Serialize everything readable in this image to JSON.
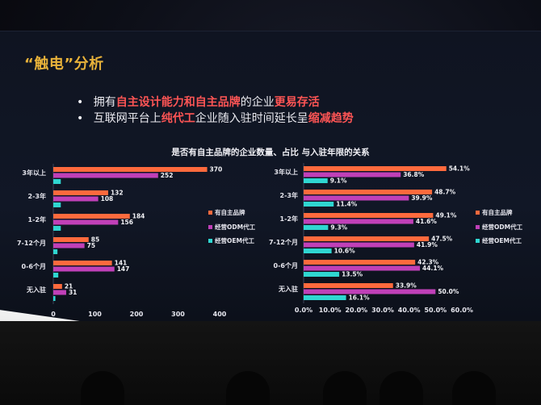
{
  "slide": {
    "title": "“触电”分析",
    "bullets": [
      [
        {
          "text": "拥有",
          "highlight": false
        },
        {
          "text": "自主设计能力和自主品牌",
          "highlight": true
        },
        {
          "text": "的企业",
          "highlight": false
        },
        {
          "text": "更易存活",
          "highlight": true
        }
      ],
      [
        {
          "text": "互联网平台上",
          "highlight": false
        },
        {
          "text": "纯代工",
          "highlight": true
        },
        {
          "text": "企业随入驻时间延长呈",
          "highlight": false
        },
        {
          "text": "缩减趋势",
          "highlight": true
        }
      ]
    ],
    "chart_title": "是否有自主品牌的企业数量、占比 与入驻年限的关系"
  },
  "colors": {
    "brand": "#ff6a3d",
    "odm": "#c040b8",
    "oem": "#2fd6d1",
    "title": "#e8b23a",
    "highlight": "#ff5555"
  },
  "chart_data": [
    {
      "type": "bar",
      "orientation": "horizontal",
      "categories": [
        "3年以上",
        "2-3年",
        "1-2年",
        "7-12个月",
        "0-6个月",
        "无入驻"
      ],
      "series": [
        {
          "name": "有自主品牌",
          "values": [
            370,
            132,
            184,
            85,
            141,
            21
          ],
          "labels": [
            "370",
            "132",
            "184",
            "85",
            "141",
            "21"
          ],
          "color": "#ff6a3d"
        },
        {
          "name": "经营ODM代工",
          "values": [
            252,
            108,
            156,
            75,
            147,
            31
          ],
          "labels": [
            "252",
            "108",
            "156",
            "75",
            "147",
            "31"
          ],
          "color": "#c040b8"
        },
        {
          "name": "经营OEM代工",
          "values": [
            18,
            18,
            18,
            10,
            12,
            5
          ],
          "labels": [
            "",
            "",
            "",
            "",
            "",
            ""
          ],
          "color": "#2fd6d1"
        }
      ],
      "xlim": [
        0,
        400
      ],
      "xticks": [
        "0",
        "100",
        "200",
        "300",
        "400"
      ],
      "grid": false,
      "legend": "right"
    },
    {
      "type": "bar",
      "orientation": "horizontal",
      "categories": [
        "3年以上",
        "2-3年",
        "1-2年",
        "7-12个月",
        "0-6个月",
        "无入驻"
      ],
      "series": [
        {
          "name": "有自主品牌",
          "values": [
            54.1,
            48.7,
            49.1,
            47.5,
            42.3,
            33.9
          ],
          "labels": [
            "54.1%",
            "48.7%",
            "49.1%",
            "47.5%",
            "42.3%",
            "33.9%"
          ],
          "color": "#ff6a3d"
        },
        {
          "name": "经营ODM代工",
          "values": [
            36.8,
            39.9,
            41.6,
            41.9,
            44.1,
            50.0
          ],
          "labels": [
            "36.8%",
            "39.9%",
            "41.6%",
            "41.9%",
            "44.1%",
            "50.0%"
          ],
          "color": "#c040b8"
        },
        {
          "name": "经营OEM代工",
          "values": [
            9.1,
            11.4,
            9.3,
            10.6,
            13.5,
            16.1
          ],
          "labels": [
            "9.1%",
            "11.4%",
            "9.3%",
            "10.6%",
            "13.5%",
            "16.1%"
          ],
          "color": "#2fd6d1"
        }
      ],
      "xlim": [
        0,
        60
      ],
      "xticks": [
        "0.0%",
        "10.0%",
        "20.0%",
        "30.0%",
        "40.0%",
        "50.0%",
        "60.0%"
      ],
      "grid": false,
      "legend": "right"
    }
  ]
}
